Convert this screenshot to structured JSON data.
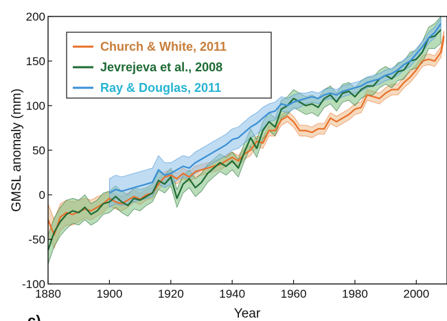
{
  "chart_data": {
    "type": "line",
    "title": "",
    "xlabel": "Year",
    "ylabel": "GMSL anomaly (mm)",
    "xlim": [
      1880,
      2010
    ],
    "ylim": [
      -100,
      200
    ],
    "x_ticks": [
      1880,
      1900,
      1920,
      1940,
      1960,
      1980,
      2000
    ],
    "y_ticks": [
      -100,
      -50,
      0,
      50,
      100,
      150,
      200
    ],
    "grid": false,
    "legend_position": "top-left",
    "panel_label": "c)",
    "series": [
      {
        "name": "Church & White, 2011",
        "color": "#e8702a",
        "band_color": "#eebb88",
        "label_color": "#c87d3a",
        "uncertainty_band": true,
        "x": [
          1880,
          1882,
          1884,
          1886,
          1888,
          1890,
          1892,
          1894,
          1896,
          1898,
          1900,
          1902,
          1904,
          1906,
          1908,
          1910,
          1912,
          1914,
          1916,
          1918,
          1920,
          1922,
          1924,
          1926,
          1928,
          1930,
          1932,
          1934,
          1936,
          1938,
          1940,
          1942,
          1944,
          1946,
          1948,
          1950,
          1952,
          1954,
          1956,
          1958,
          1960,
          1962,
          1964,
          1966,
          1968,
          1970,
          1972,
          1974,
          1976,
          1978,
          1980,
          1982,
          1984,
          1986,
          1988,
          1990,
          1992,
          1994,
          1996,
          1998,
          2000,
          2002,
          2004,
          2006,
          2008,
          2009
        ],
        "y": [
          -28,
          -45,
          -25,
          -20,
          -22,
          -19,
          -16,
          -18,
          -14,
          -10,
          -4,
          -8,
          -10,
          -6,
          -2,
          -5,
          0,
          2,
          12,
          20,
          22,
          18,
          24,
          20,
          26,
          28,
          30,
          32,
          34,
          38,
          42,
          38,
          46,
          50,
          60,
          58,
          72,
          72,
          84,
          88,
          82,
          72,
          72,
          70,
          74,
          74,
          86,
          82,
          86,
          90,
          96,
          98,
          112,
          110,
          108,
          114,
          118,
          118,
          126,
          132,
          140,
          150,
          152,
          150,
          160,
          178
        ],
        "lower": [
          -45,
          -60,
          -40,
          -34,
          -34,
          -30,
          -26,
          -28,
          -24,
          -20,
          -12,
          -16,
          -18,
          -14,
          -8,
          -11,
          -6,
          -4,
          6,
          14,
          16,
          12,
          18,
          14,
          20,
          22,
          24,
          26,
          28,
          32,
          36,
          32,
          40,
          44,
          54,
          52,
          66,
          66,
          78,
          82,
          76,
          66,
          66,
          64,
          68,
          68,
          80,
          76,
          80,
          84,
          90,
          92,
          106,
          104,
          102,
          108,
          112,
          112,
          120,
          126,
          134,
          144,
          146,
          144,
          154,
          172
        ],
        "upper": [
          -10,
          -28,
          -10,
          -6,
          -8,
          -6,
          -4,
          -6,
          -2,
          0,
          4,
          0,
          -2,
          2,
          6,
          1,
          6,
          8,
          18,
          26,
          28,
          24,
          30,
          26,
          32,
          34,
          36,
          38,
          40,
          44,
          48,
          44,
          52,
          56,
          66,
          64,
          78,
          78,
          90,
          94,
          88,
          78,
          78,
          76,
          80,
          80,
          92,
          88,
          92,
          96,
          102,
          104,
          118,
          116,
          114,
          120,
          124,
          124,
          132,
          138,
          146,
          156,
          158,
          156,
          166,
          184
        ]
      },
      {
        "name": "Jevrejeva et al., 2008",
        "color": "#1e6b35",
        "band_color": "#7fbf7f",
        "label_color": "#1e6b35",
        "uncertainty_band": true,
        "x": [
          1880,
          1882,
          1884,
          1886,
          1888,
          1890,
          1892,
          1894,
          1896,
          1898,
          1900,
          1902,
          1904,
          1906,
          1908,
          1910,
          1912,
          1914,
          1916,
          1918,
          1920,
          1922,
          1924,
          1926,
          1928,
          1930,
          1932,
          1934,
          1936,
          1938,
          1940,
          1942,
          1944,
          1946,
          1948,
          1950,
          1952,
          1954,
          1956,
          1958,
          1960,
          1962,
          1964,
          1966,
          1968,
          1970,
          1972,
          1974,
          1976,
          1978,
          1980,
          1982,
          1984,
          1986,
          1988,
          1990,
          1992,
          1994,
          1996,
          1998,
          2000,
          2002,
          2004,
          2006,
          2008
        ],
        "y": [
          -62,
          -42,
          -30,
          -22,
          -18,
          -20,
          -14,
          -22,
          -18,
          -10,
          -8,
          -2,
          -8,
          -12,
          -4,
          -6,
          -2,
          2,
          16,
          12,
          20,
          -4,
          12,
          18,
          8,
          14,
          24,
          30,
          36,
          32,
          38,
          30,
          48,
          64,
          52,
          72,
          82,
          76,
          96,
          100,
          108,
          104,
          100,
          102,
          98,
          108,
          112,
          104,
          114,
          116,
          110,
          118,
          122,
          122,
          130,
          134,
          130,
          138,
          140,
          150,
          152,
          160,
          176,
          178,
          185
        ],
        "lower": [
          -78,
          -58,
          -46,
          -38,
          -32,
          -34,
          -28,
          -34,
          -30,
          -22,
          -20,
          -14,
          -20,
          -24,
          -16,
          -18,
          -12,
          -8,
          6,
          2,
          10,
          -14,
          2,
          8,
          -2,
          4,
          14,
          20,
          26,
          22,
          28,
          20,
          38,
          54,
          42,
          62,
          72,
          66,
          86,
          90,
          98,
          94,
          90,
          92,
          88,
          98,
          102,
          94,
          104,
          106,
          100,
          108,
          112,
          112,
          120,
          124,
          120,
          128,
          130,
          140,
          142,
          148,
          164,
          164,
          170
        ],
        "upper": [
          -46,
          -26,
          -14,
          -6,
          -4,
          -6,
          0,
          -10,
          -6,
          2,
          4,
          10,
          4,
          0,
          8,
          6,
          8,
          12,
          26,
          22,
          30,
          6,
          22,
          28,
          18,
          24,
          34,
          40,
          46,
          42,
          48,
          40,
          58,
          74,
          62,
          82,
          92,
          86,
          106,
          110,
          118,
          114,
          110,
          112,
          108,
          118,
          122,
          114,
          124,
          126,
          120,
          128,
          132,
          132,
          140,
          144,
          140,
          148,
          150,
          160,
          162,
          172,
          188,
          192,
          200
        ]
      },
      {
        "name": "Ray & Douglas, 2011",
        "color": "#3a8fd6",
        "band_color": "#8cc0e8",
        "label_color": "#27b4d2",
        "uncertainty_band": true,
        "x": [
          1900,
          1902,
          1904,
          1906,
          1908,
          1910,
          1912,
          1914,
          1916,
          1918,
          1920,
          1922,
          1924,
          1926,
          1928,
          1930,
          1932,
          1934,
          1936,
          1938,
          1940,
          1942,
          1944,
          1946,
          1948,
          1950,
          1952,
          1954,
          1956,
          1958,
          1960,
          1962,
          1964,
          1966,
          1968,
          1970,
          1972,
          1974,
          1976,
          1978,
          1980,
          1982,
          1984,
          1986,
          1988,
          1990,
          1992,
          1994,
          1996,
          1998,
          2000,
          2002,
          2004,
          2006,
          2008
        ],
        "y": [
          2,
          6,
          4,
          6,
          8,
          10,
          12,
          14,
          28,
          22,
          24,
          28,
          32,
          30,
          36,
          40,
          44,
          48,
          52,
          56,
          62,
          64,
          70,
          76,
          80,
          86,
          92,
          94,
          102,
          100,
          104,
          106,
          108,
          110,
          108,
          112,
          114,
          112,
          116,
          118,
          120,
          122,
          126,
          128,
          130,
          134,
          136,
          140,
          146,
          150,
          158,
          166,
          176,
          182,
          192
        ],
        "lower": [
          -14,
          -10,
          -12,
          -10,
          -8,
          -6,
          -4,
          -2,
          12,
          8,
          12,
          16,
          20,
          18,
          24,
          28,
          32,
          36,
          40,
          44,
          50,
          52,
          58,
          64,
          68,
          74,
          82,
          84,
          94,
          92,
          96,
          98,
          102,
          104,
          102,
          106,
          108,
          106,
          110,
          112,
          114,
          116,
          120,
          122,
          124,
          128,
          130,
          134,
          140,
          144,
          152,
          160,
          170,
          176,
          186
        ],
        "upper": [
          18,
          22,
          20,
          22,
          24,
          26,
          28,
          30,
          44,
          36,
          36,
          40,
          44,
          42,
          48,
          52,
          56,
          60,
          64,
          68,
          74,
          76,
          82,
          88,
          92,
          98,
          102,
          104,
          110,
          108,
          112,
          114,
          114,
          116,
          114,
          118,
          120,
          118,
          122,
          124,
          126,
          128,
          132,
          134,
          136,
          140,
          142,
          146,
          152,
          156,
          164,
          172,
          182,
          188,
          198
        ]
      }
    ]
  }
}
